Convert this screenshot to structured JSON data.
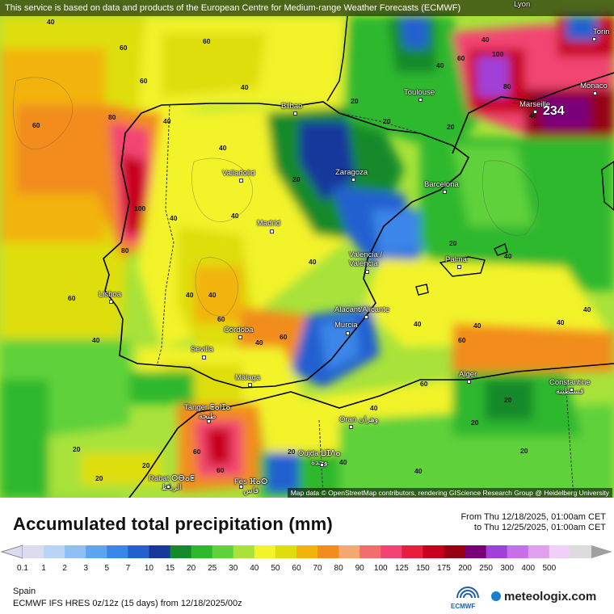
{
  "banner": "This service is based on data and products of the European Centre for Medium-range Weather Forecasts (ECMWF)",
  "attribution": "Map data © OpenStreetMap contributors, rendering GIScience Research Group @ Heidelberg University",
  "cities": [
    {
      "id": "lyon",
      "name": "Lyon"
    },
    {
      "id": "torino",
      "name": "Torin"
    },
    {
      "id": "monaco",
      "name": "Monaco"
    },
    {
      "id": "marseille",
      "name": "Marseille"
    },
    {
      "id": "toulouse",
      "name": "Toulouse"
    },
    {
      "id": "bilbao",
      "name": "Bilbao"
    },
    {
      "id": "zaragoza",
      "name": "Zaragoza"
    },
    {
      "id": "barcelona",
      "name": "Barcelona"
    },
    {
      "id": "valladolid",
      "name": "Valladolid"
    },
    {
      "id": "madrid",
      "name": "Madrid"
    },
    {
      "id": "valencia",
      "name": "Valencia /\nValència"
    },
    {
      "id": "palma",
      "name": "Palma"
    },
    {
      "id": "lisboa",
      "name": "Lisboa"
    },
    {
      "id": "alicante",
      "name": "Alacant/Alicante"
    },
    {
      "id": "murcia",
      "name": "Murcia"
    },
    {
      "id": "cordoba",
      "name": "Córdoba"
    },
    {
      "id": "sevilla",
      "name": "Sevilla"
    },
    {
      "id": "malaga",
      "name": "Málaga"
    },
    {
      "id": "alger",
      "name": "Alger"
    },
    {
      "id": "constantine",
      "name": "Constantine\nقسنطينة"
    },
    {
      "id": "tanger",
      "name": "Tanger ⵟⴰⵏⵊⴰ\nطنجة"
    },
    {
      "id": "oran",
      "name": "Oran وهران"
    },
    {
      "id": "oujda",
      "name": "Oujda ⵡⵊⴷⴰ\nوجدة"
    },
    {
      "id": "rabat",
      "name": "Rabat ⵔⴱⴰⵟ\nالرباط"
    },
    {
      "id": "fes",
      "name": "Fès ⴼⴰⵙ\nفاس"
    }
  ],
  "max_value": "234",
  "contours": [
    "40",
    "60",
    "60",
    "60",
    "60",
    "80",
    "100",
    "80",
    "40",
    "40",
    "20",
    "20",
    "20",
    "40",
    "40",
    "60",
    "80",
    "100",
    "40",
    "40",
    "40",
    "20",
    "40",
    "40",
    "60",
    "40",
    "40",
    "40",
    "60",
    "20",
    "40",
    "40",
    "40",
    "40",
    "60",
    "40",
    "60",
    "40",
    "20",
    "20",
    "40",
    "60",
    "20",
    "20",
    "60",
    "20",
    "40",
    "20",
    "20",
    "40",
    "60"
  ],
  "legend": {
    "title": "Accumulated total precipitation (mm)",
    "period_from": "From Thu 12/18/2025, 01:00am CET",
    "period_to": "to Thu 12/25/2025, 01:00am CET",
    "ticks": [
      "0.1",
      "1",
      "2",
      "3",
      "5",
      "7",
      "10",
      "15",
      "20",
      "25",
      "30",
      "40",
      "50",
      "60",
      "70",
      "80",
      "90",
      "100",
      "125",
      "150",
      "175",
      "200",
      "250",
      "300",
      "400",
      "500"
    ],
    "colors": [
      "#dcdcf0",
      "#b9d4f7",
      "#8ec0f5",
      "#5ea5f0",
      "#3a86e8",
      "#2460d0",
      "#17389c",
      "#168a2a",
      "#2eb82e",
      "#5fd13a",
      "#a8e23a",
      "#f3f32a",
      "#dede0c",
      "#f2b30c",
      "#f28c1c",
      "#f5a870",
      "#f26e6e",
      "#f24472",
      "#e81e3c",
      "#c8001e",
      "#960012",
      "#7a007a",
      "#a040d8",
      "#c86ee8",
      "#e0a0f0",
      "#f0d0f8",
      "#dcdcdc"
    ]
  },
  "footer": {
    "region": "Spain",
    "model": "ECMWF IFS HRES 0z/12z (15 days) from 12/18/2025/00z",
    "ecmwf": "ECMWF",
    "brand": "meteologix.com"
  }
}
